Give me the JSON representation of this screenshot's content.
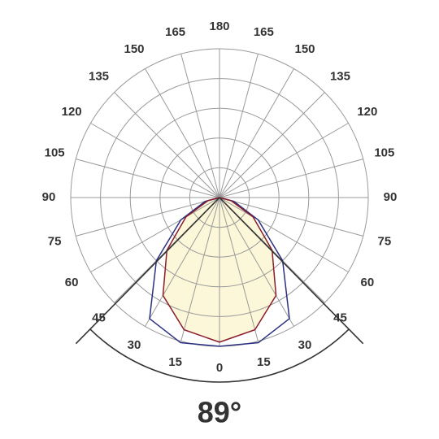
{
  "chart_data": {
    "type": "polar",
    "angles": [
      0,
      15,
      30,
      45,
      60,
      75,
      90,
      105,
      120,
      135,
      150,
      165,
      180
    ],
    "rlim": [
      0,
      5
    ],
    "rgrid": [
      1,
      2,
      3,
      4,
      5
    ],
    "grid": true,
    "series": [
      {
        "color": "#2b2f7f",
        "values": [
          5.0,
          5.05,
          4.7,
          3.0,
          1.5,
          0.5,
          0,
          0,
          0,
          0,
          0,
          0,
          0
        ]
      },
      {
        "color": "#8a1c2b",
        "fill": "#fcf7d8",
        "values": [
          4.86,
          4.6,
          3.8,
          2.5,
          1.3,
          0.4,
          0,
          0,
          0,
          0,
          0,
          0,
          0
        ]
      }
    ],
    "beam_angle": 89,
    "beam_label": "89°"
  }
}
